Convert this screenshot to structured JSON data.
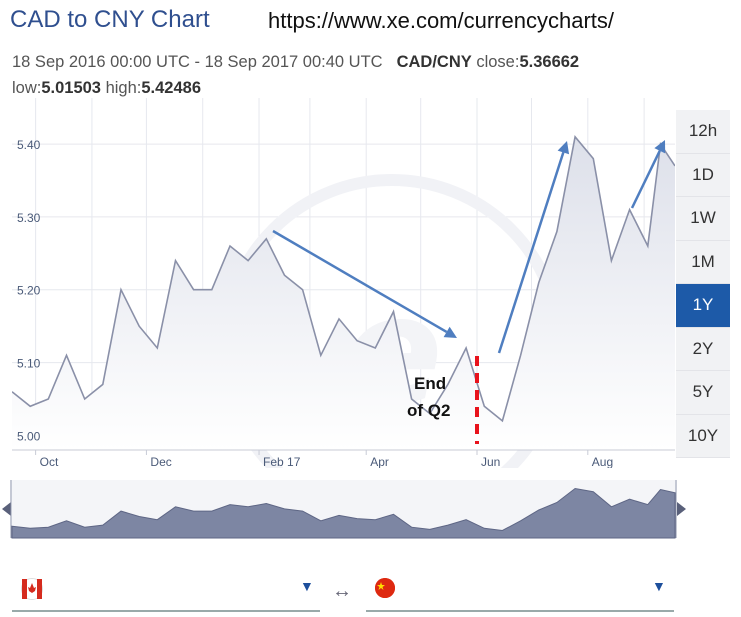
{
  "header": {
    "title": "CAD to CNY Chart",
    "url": "https://www.xe.com/currencycharts/",
    "date_range": "18 Sep 2016 00:00 UTC - 18 Sep 2017 00:40 UTC",
    "pair": "CAD/CNY",
    "close_label": "close:",
    "close_value": "5.36662",
    "low_label": "low:",
    "low_value": "5.01503",
    "high_label": "high:",
    "high_value": "5.42486"
  },
  "range_buttons": [
    "12h",
    "1D",
    "1W",
    "1M",
    "1Y",
    "2Y",
    "5Y",
    "10Y"
  ],
  "active_range": "1Y",
  "colors": {
    "line": "#8a90a8",
    "area_top": "#dfe2ec",
    "arrow": "#4f7ec0",
    "marker": "#e8131c",
    "accent": "#1d5aa8",
    "nav_fill": "#7d86a3"
  },
  "chart_data": {
    "type": "area",
    "title": "",
    "xlabel": "",
    "ylabel": "",
    "ylim": [
      4.98,
      5.455
    ],
    "x_ticks": [
      "Oct",
      "Dec",
      "Feb 17",
      "Apr",
      "Jun",
      "Aug"
    ],
    "y_ticks": [
      5.0,
      5.1,
      5.2,
      5.3,
      5.4
    ],
    "series": [
      {
        "x": [
          "2016-09-18",
          "2016-09-28",
          "2016-10-08",
          "2016-10-18",
          "2016-10-28",
          "2016-11-07",
          "2016-11-17",
          "2016-11-27",
          "2016-12-07",
          "2016-12-17",
          "2016-12-27",
          "2017-01-06",
          "2017-01-16",
          "2017-01-26",
          "2017-02-05",
          "2017-02-15",
          "2017-02-25",
          "2017-03-07",
          "2017-03-17",
          "2017-03-27",
          "2017-04-06",
          "2017-04-16",
          "2017-04-26",
          "2017-05-06",
          "2017-05-16",
          "2017-05-26",
          "2017-06-05",
          "2017-06-15",
          "2017-06-25",
          "2017-07-05",
          "2017-07-15",
          "2017-07-25",
          "2017-08-04",
          "2017-08-14",
          "2017-08-24",
          "2017-09-03",
          "2017-09-10",
          "2017-09-18"
        ],
        "y": [
          5.06,
          5.04,
          5.05,
          5.11,
          5.05,
          5.07,
          5.2,
          5.15,
          5.12,
          5.24,
          5.2,
          5.2,
          5.26,
          5.24,
          5.27,
          5.22,
          5.2,
          5.11,
          5.16,
          5.13,
          5.12,
          5.17,
          5.05,
          5.03,
          5.07,
          5.12,
          5.04,
          5.02,
          5.11,
          5.21,
          5.28,
          5.41,
          5.38,
          5.24,
          5.31,
          5.26,
          5.4,
          5.37
        ]
      }
    ],
    "annotations": [
      "End",
      "of Q2"
    ],
    "grid": true,
    "legend": "none"
  }
}
